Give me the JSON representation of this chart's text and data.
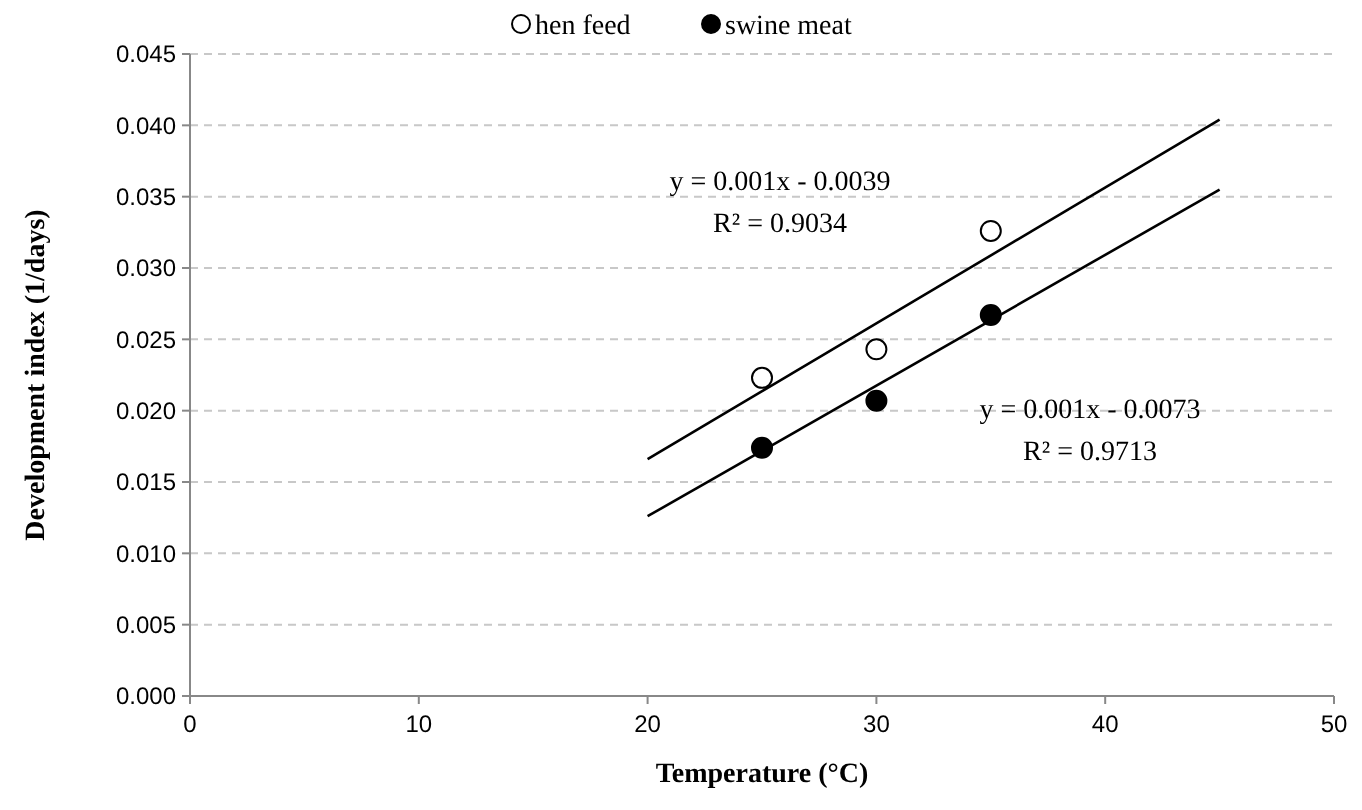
{
  "chart_data": {
    "type": "scatter",
    "xlabel": "Temperature (°C)",
    "ylabel": "Development index (1/days)",
    "xlim": [
      0,
      50
    ],
    "xticks": [
      0,
      10,
      20,
      30,
      40,
      50
    ],
    "ylim": [
      0,
      0.045
    ],
    "yticks": [
      {
        "value": 0,
        "label": "0.000"
      },
      {
        "value": 0.005,
        "label": "0.005"
      },
      {
        "value": 0.01,
        "label": "0.010"
      },
      {
        "value": 0.015,
        "label": "0.015"
      },
      {
        "value": 0.02,
        "label": "0.020"
      },
      {
        "value": 0.025,
        "label": "0.025"
      },
      {
        "value": 0.03,
        "label": "0.030"
      },
      {
        "value": 0.035,
        "label": "0.035"
      },
      {
        "value": 0.04,
        "label": "0.040"
      },
      {
        "value": 0.045,
        "label": "0.045"
      }
    ],
    "grid": "y",
    "legend": "top",
    "series": [
      {
        "name": "hen feed",
        "color": "#ffffff",
        "marker": "circle",
        "x": [
          25,
          30,
          35
        ],
        "values": [
          0.0223,
          0.0243,
          0.0326
        ]
      },
      {
        "name": "swine meat",
        "color": "#000000",
        "marker": "circle",
        "x": [
          25,
          30,
          35
        ],
        "values": [
          0.0174,
          0.0207,
          0.0267
        ]
      },
      {
        "type": "line",
        "color": "#000000",
        "x": [
          20,
          45
        ],
        "values": [
          0.0166,
          0.0404
        ]
      },
      {
        "type": "line",
        "color": "#000000",
        "x": [
          20,
          45
        ],
        "values": [
          0.0126,
          0.0355
        ]
      }
    ],
    "annotations": [
      "y = 0.001x - 0.0039",
      "R² = 0.9034",
      "y = 0.001x - 0.0073",
      "R² = 0.9713"
    ]
  }
}
